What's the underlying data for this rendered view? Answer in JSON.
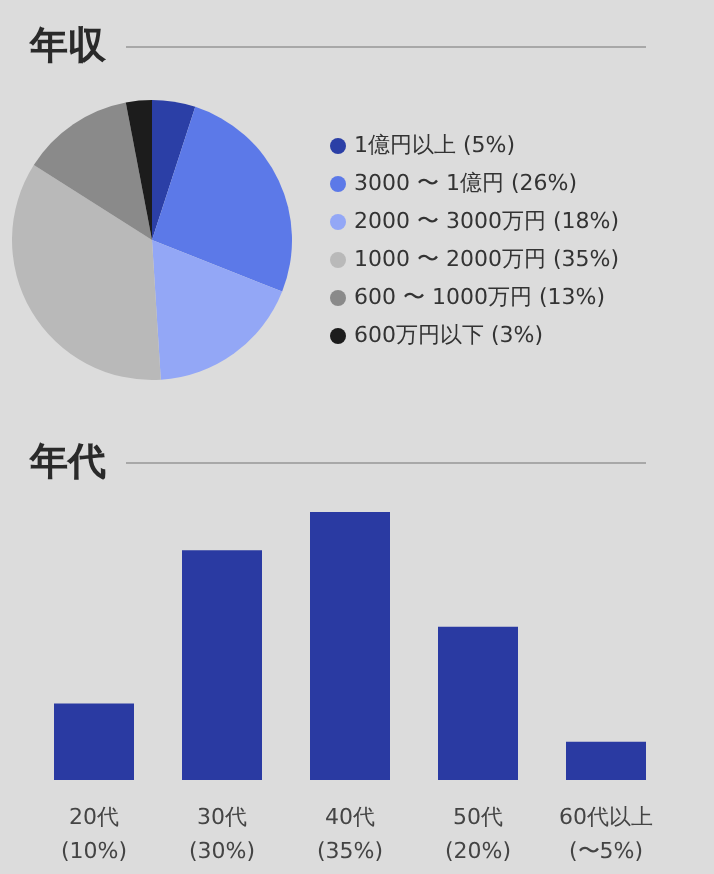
{
  "chart_data": [
    {
      "type": "pie",
      "title": "年収",
      "categories": [
        "1億円以上 (5%)",
        "3000 〜 1億円 (26%)",
        "2000 〜 3000万円 (18%)",
        "1000 〜 2000万円 (35%)",
        "600 〜 1000万円 (13%)",
        "600万円以下 (3%)"
      ],
      "values": [
        5,
        26,
        18,
        35,
        13,
        3
      ],
      "colors": [
        "#2b3fa6",
        "#5c79e8",
        "#93a7f6",
        "#b9b9b9",
        "#8a8a8a",
        "#1c1c1c"
      ],
      "legend": "right"
    },
    {
      "type": "bar",
      "title": "年代",
      "categories": [
        "20代",
        "30代",
        "40代",
        "50代",
        "60代以上"
      ],
      "values": [
        10,
        30,
        35,
        20,
        5
      ],
      "value_labels": [
        "(10%)",
        "(30%)",
        "(35%)",
        "(20%)",
        "(〜5%)"
      ],
      "color": "#2a3aa2"
    }
  ]
}
